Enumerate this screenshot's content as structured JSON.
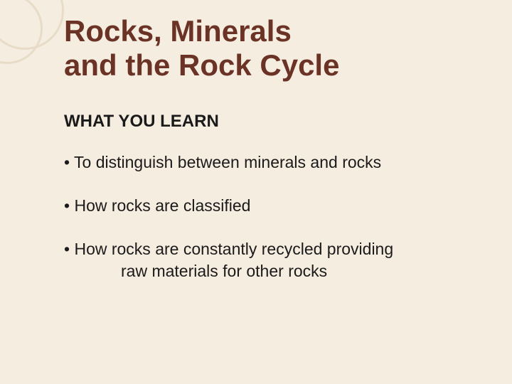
{
  "slide": {
    "title_line1": "Rocks, Minerals",
    "title_line2": "and the Rock Cycle",
    "subheading": "WHAT YOU LEARN",
    "bullets": [
      "To distinguish between minerals and rocks",
      "How rocks are classified",
      "How rocks are constantly recycled providing"
    ],
    "bullet3_continuation": "raw materials for other rocks"
  },
  "styling": {
    "background_color": "#f5ede0",
    "title_color": "#6b3226",
    "text_color": "#1a1a1a",
    "decoration_color": "#e8dcc8",
    "title_fontsize": 42,
    "subheading_fontsize": 24,
    "body_fontsize": 23,
    "font_family": "Arial"
  }
}
